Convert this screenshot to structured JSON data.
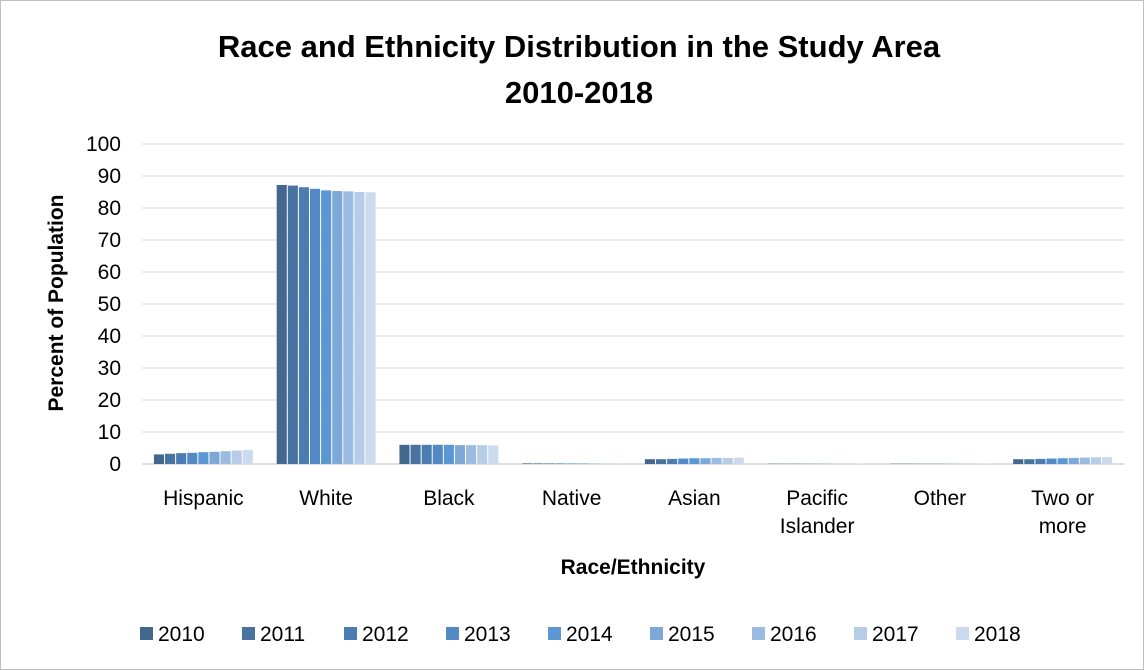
{
  "chart_data": {
    "type": "bar",
    "title_lines": [
      "Race and Ethnicity Distribution in the Study Area",
      "2010-2018"
    ],
    "xlabel": "Race/Ethnicity",
    "ylabel": "Percent of Population",
    "ylim": [
      0,
      100
    ],
    "yticks": [
      0,
      10,
      20,
      30,
      40,
      50,
      60,
      70,
      80,
      90,
      100
    ],
    "grid": true,
    "legend_position": "bottom",
    "categories": [
      [
        "Hispanic"
      ],
      [
        "White"
      ],
      [
        "Black"
      ],
      [
        "Native"
      ],
      [
        "Asian"
      ],
      [
        "Pacific",
        "Islander"
      ],
      [
        "Other"
      ],
      [
        "Two or",
        "more"
      ]
    ],
    "series": [
      {
        "name": "2010",
        "color": "#44678f",
        "values": [
          3.0,
          87.2,
          6.0,
          0.2,
          1.5,
          0.1,
          0.1,
          1.5
        ]
      },
      {
        "name": "2011",
        "color": "#48729f",
        "values": [
          3.2,
          87.0,
          6.0,
          0.2,
          1.5,
          0.1,
          0.1,
          1.5
        ]
      },
      {
        "name": "2012",
        "color": "#4c7db2",
        "values": [
          3.4,
          86.5,
          6.0,
          0.2,
          1.6,
          0.1,
          0.1,
          1.6
        ]
      },
      {
        "name": "2013",
        "color": "#5389c4",
        "values": [
          3.5,
          86.0,
          6.0,
          0.2,
          1.7,
          0.1,
          0.1,
          1.7
        ]
      },
      {
        "name": "2014",
        "color": "#5b97d3",
        "values": [
          3.7,
          85.5,
          6.0,
          0.2,
          1.8,
          0.1,
          0.1,
          1.8
        ]
      },
      {
        "name": "2015",
        "color": "#7ea8d8",
        "values": [
          3.8,
          85.3,
          5.9,
          0.2,
          1.8,
          0.1,
          0.1,
          1.9
        ]
      },
      {
        "name": "2016",
        "color": "#9cbbe0",
        "values": [
          4.0,
          85.2,
          5.9,
          0.2,
          1.9,
          0.1,
          0.1,
          2.0
        ]
      },
      {
        "name": "2017",
        "color": "#b7cde7",
        "values": [
          4.2,
          85.0,
          5.9,
          0.2,
          1.9,
          0.1,
          0.1,
          2.1
        ]
      },
      {
        "name": "2018",
        "color": "#ccdaed",
        "values": [
          4.4,
          84.9,
          5.8,
          0.2,
          2.0,
          0.1,
          0.1,
          2.2
        ]
      }
    ]
  }
}
